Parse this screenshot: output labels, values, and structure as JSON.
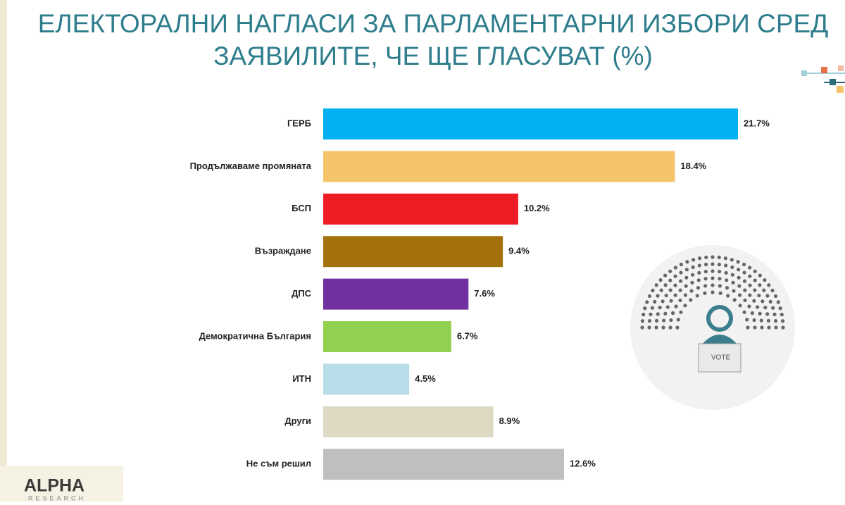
{
  "chart_data": {
    "type": "hbar",
    "title": [
      "ЕЛЕКТОРАЛНИ НАГЛАСИ ЗА ПАРЛАМЕНТАРНИ ИЗБОРИ СРЕД",
      "ЗАЯВИЛИТЕ, ЧЕ ЩЕ ГЛАСУВАТ (%)"
    ],
    "categories": [
      "ГЕРБ",
      "Продължаваме промяната",
      "БСП",
      "Възраждане",
      "ДПС",
      "Демократична България",
      "ИТН",
      "Други",
      "Не съм решил"
    ],
    "values": [
      21.7,
      18.4,
      10.2,
      9.4,
      7.6,
      6.7,
      4.5,
      8.9,
      12.6
    ],
    "value_labels": [
      "21.7%",
      "18.4%",
      "10.2%",
      "9.4%",
      "7.6%",
      "6.7%",
      "4.5%",
      "8.9%",
      "12.6%"
    ],
    "colors": [
      "#00b0f0",
      "#f5c46a",
      "#ee1c25",
      "#a3720a",
      "#7030a0",
      "#92d050",
      "#b7dde8",
      "#ddd9c3",
      "#bfbfbf"
    ]
  },
  "logo": {
    "name": "ALPHA",
    "subtitle": "RESEARCH"
  }
}
